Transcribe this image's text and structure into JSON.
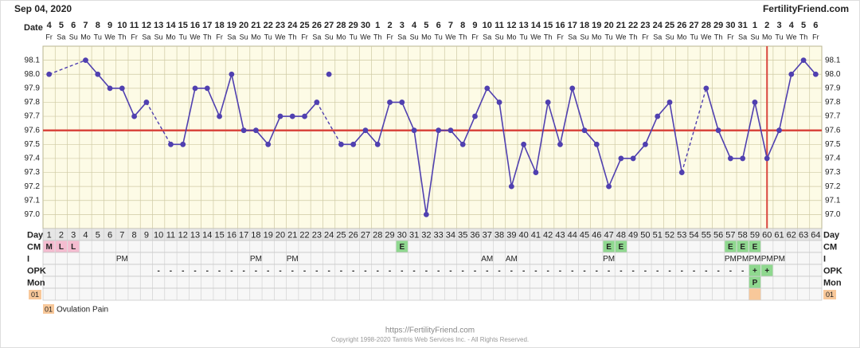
{
  "header": {
    "date": "Sep 04, 2020",
    "site": "FertilityFriend.com"
  },
  "chart_data": {
    "type": "line",
    "x_label": "Date",
    "dates": [
      4,
      5,
      6,
      7,
      8,
      9,
      10,
      11,
      12,
      13,
      14,
      15,
      16,
      17,
      18,
      19,
      20,
      21,
      22,
      23,
      24,
      25,
      26,
      27,
      28,
      29,
      30,
      1,
      2,
      3,
      4,
      5,
      6,
      7,
      8,
      9,
      10,
      11,
      12,
      13,
      14,
      15,
      16,
      17,
      18,
      19,
      20,
      21,
      22,
      23,
      24,
      25,
      26,
      27,
      28,
      29,
      30,
      31,
      1,
      2,
      3,
      4,
      5,
      6
    ],
    "weekdays": [
      "Fr",
      "Sa",
      "Su",
      "Mo",
      "Tu",
      "We",
      "Th",
      "Fr",
      "Sa",
      "Su",
      "Mo",
      "Tu",
      "We",
      "Th",
      "Fr",
      "Sa",
      "Su",
      "Mo",
      "Tu",
      "We",
      "Th",
      "Fr",
      "Sa",
      "Su",
      "Mo",
      "Tu",
      "We",
      "Th",
      "Fr",
      "Sa",
      "Su",
      "Mo",
      "Tu",
      "We",
      "Th",
      "Fr",
      "Sa",
      "Su",
      "Mo",
      "Tu",
      "We",
      "Th",
      "Fr",
      "Sa",
      "Su",
      "Mo",
      "Tu",
      "We",
      "Th",
      "Fr",
      "Sa",
      "Su",
      "Mo",
      "Tu",
      "We",
      "Th",
      "Fr",
      "Sa",
      "Su",
      "Mo",
      "Tu",
      "We",
      "Th",
      "Fr"
    ],
    "days": [
      1,
      2,
      3,
      4,
      5,
      6,
      7,
      8,
      9,
      10,
      11,
      12,
      13,
      14,
      15,
      16,
      17,
      18,
      19,
      20,
      21,
      22,
      23,
      24,
      25,
      26,
      27,
      28,
      29,
      30,
      31,
      32,
      33,
      34,
      35,
      36,
      37,
      38,
      39,
      40,
      41,
      42,
      43,
      44,
      45,
      46,
      47,
      48,
      49,
      50,
      51,
      52,
      53,
      54,
      55,
      56,
      57,
      58,
      59,
      60,
      61,
      62,
      63,
      64
    ],
    "series": [
      {
        "color": "#5040b0",
        "values": [
          98.0,
          null,
          null,
          98.1,
          98.0,
          97.9,
          97.9,
          97.7,
          97.8,
          null,
          97.5,
          97.5,
          97.9,
          97.9,
          97.7,
          98.0,
          97.6,
          97.6,
          97.5,
          97.7,
          97.7,
          97.7,
          97.8,
          null,
          97.5,
          97.5,
          97.6,
          97.5,
          97.8,
          97.8,
          97.6,
          97.0,
          97.6,
          97.6,
          97.5,
          97.7,
          97.9,
          97.8,
          97.2,
          97.5,
          97.3,
          97.8,
          97.5,
          97.9,
          97.6,
          97.5,
          97.2,
          97.4,
          97.4,
          97.5,
          97.7,
          97.8,
          97.3,
          null,
          97.9,
          97.6,
          97.4,
          97.4,
          97.8,
          97.4,
          97.6,
          98.0,
          98.1,
          98.0
        ]
      }
    ],
    "excluded": {
      "day": 24,
      "value": 98.0
    },
    "ylim": [
      96.9,
      98.2
    ],
    "yticks": [
      {
        "value": 97.0,
        "label": "97.0"
      },
      97.1,
      97.2,
      97.3,
      97.4,
      97.5,
      97.6,
      97.7,
      97.8,
      97.9,
      {
        "value": 98.0,
        "label": "98.0"
      },
      98.1
    ],
    "coverline": 97.6,
    "ovulation_day": 60,
    "marker_color": "#d9463e",
    "grid": true
  },
  "table": {
    "labels": {
      "day": "Day",
      "cm": "CM",
      "i": "I",
      "opk": "OPK",
      "mon": "Mon",
      "note": "01"
    },
    "cm": [
      "M",
      "L",
      "L",
      null,
      null,
      null,
      null,
      null,
      null,
      null,
      null,
      null,
      null,
      null,
      null,
      null,
      null,
      null,
      null,
      null,
      null,
      null,
      null,
      null,
      null,
      null,
      null,
      null,
      null,
      "E",
      null,
      null,
      null,
      null,
      null,
      null,
      null,
      null,
      null,
      null,
      null,
      null,
      null,
      null,
      null,
      null,
      "E",
      "E",
      null,
      null,
      null,
      null,
      null,
      null,
      null,
      null,
      "E",
      "E",
      "E",
      null,
      null,
      null,
      null,
      null
    ],
    "i": [
      null,
      null,
      null,
      null,
      null,
      null,
      "PM",
      null,
      null,
      null,
      null,
      null,
      null,
      null,
      null,
      null,
      null,
      "PM",
      null,
      null,
      "PM",
      null,
      null,
      null,
      null,
      null,
      null,
      null,
      null,
      null,
      null,
      null,
      null,
      null,
      null,
      null,
      "AM",
      null,
      "AM",
      null,
      null,
      null,
      null,
      null,
      null,
      null,
      "PM",
      null,
      null,
      null,
      null,
      null,
      null,
      null,
      null,
      null,
      "PM",
      "PM",
      "PM",
      "PM",
      "PM",
      null,
      null,
      null
    ],
    "opk": [
      null,
      null,
      null,
      null,
      null,
      null,
      null,
      null,
      null,
      "-",
      "-",
      "-",
      "-",
      "-",
      "-",
      "-",
      "-",
      "-",
      "-",
      "-",
      "-",
      "-",
      "-",
      "-",
      "-",
      "-",
      "-",
      "-",
      "-",
      "-",
      "-",
      "-",
      "-",
      "-",
      "-",
      "-",
      "-",
      "-",
      "-",
      "-",
      "-",
      "-",
      "-",
      "-",
      "-",
      "-",
      "-",
      "-",
      "-",
      "-",
      "-",
      "-",
      "-",
      "-",
      "-",
      "-",
      "-",
      "-",
      "+",
      "+",
      null,
      null,
      null,
      null
    ],
    "mon": [
      null,
      null,
      null,
      null,
      null,
      null,
      null,
      null,
      null,
      null,
      null,
      null,
      null,
      null,
      null,
      null,
      null,
      null,
      null,
      null,
      null,
      null,
      null,
      null,
      null,
      null,
      null,
      null,
      null,
      null,
      null,
      null,
      null,
      null,
      null,
      null,
      null,
      null,
      null,
      null,
      null,
      null,
      null,
      null,
      null,
      null,
      null,
      null,
      null,
      null,
      null,
      null,
      null,
      null,
      null,
      null,
      null,
      null,
      "P",
      null,
      null,
      null,
      null,
      null
    ],
    "note_days": [
      59
    ],
    "colors": {
      "M": "#f4bcd0",
      "L": "#f4bcd0",
      "E": "#8fd88f",
      "+": "#8fd88f",
      "P": "#8fd88f",
      "note": "#f8c89a"
    }
  },
  "legend": {
    "code": "01",
    "text": "Ovulation Pain"
  },
  "footer": {
    "url": "https://FertilityFriend.com",
    "copyright": "Copyright 1998-2020 Tamtris Web Services Inc. - All Rights Reserved."
  }
}
